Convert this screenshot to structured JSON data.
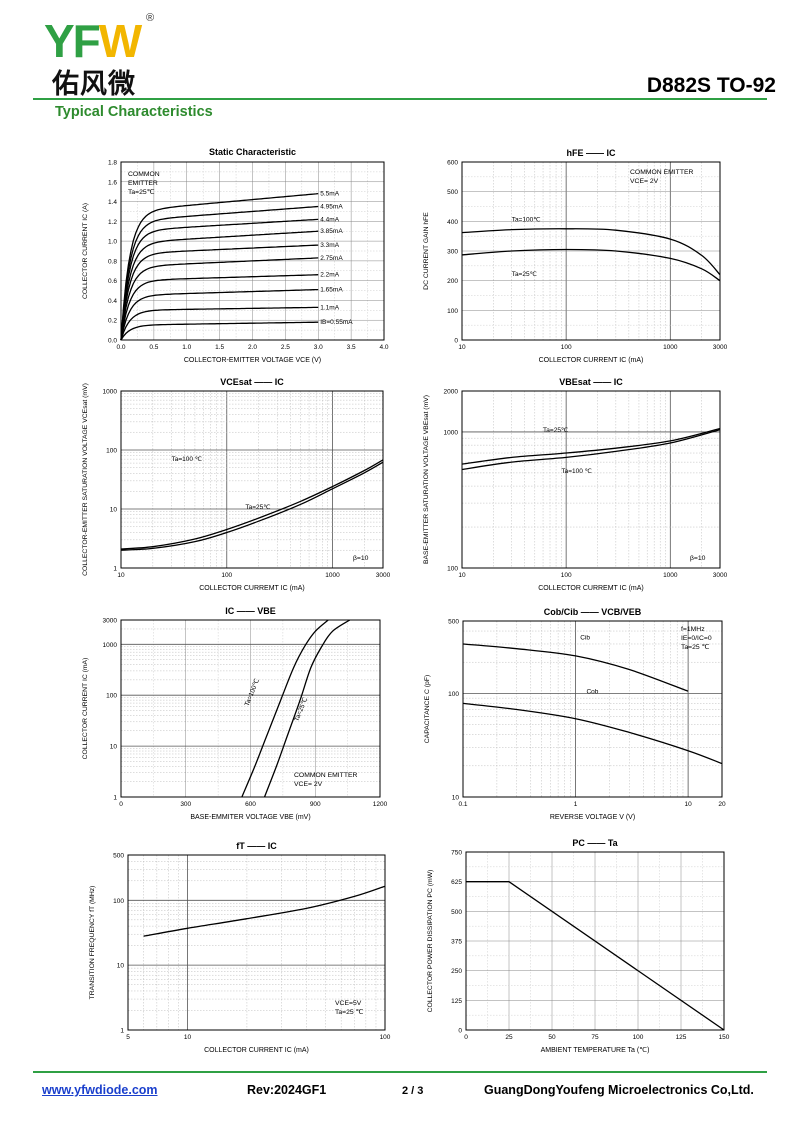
{
  "header": {
    "brand": "YFW",
    "brand_cn": "佑风微",
    "registered": "®",
    "model": "D882S TO-92",
    "section_title": "Typical Characteristics"
  },
  "footer": {
    "website": "www.yfwdiode.com",
    "revision": "Rev:2024GF1",
    "page": "2 / 3",
    "company": "GuangDongYoufeng Microelectronics Co,Ltd."
  },
  "chart_data": [
    {
      "id": "static",
      "type": "line",
      "title": "Static Characteristic",
      "xlabel": "COLLECTOR-EMITTER VOLTAGE  VCE (V)",
      "ylabel": "COLLECTOR CURRENT  IC (A)",
      "xlim": [
        0,
        4.0
      ],
      "ylim": [
        0,
        1.8
      ],
      "xscale": "linear",
      "yscale": "linear",
      "xticks": [
        "0.0",
        "0.5",
        "1.0",
        "1.5",
        "2.0",
        "2.5",
        "3.0",
        "3.5",
        "4.0"
      ],
      "yticks": [
        "0.0",
        "0.2",
        "0.4",
        "0.6",
        "0.8",
        "1.0",
        "1.2",
        "1.4",
        "1.6",
        "1.8"
      ],
      "annotation": [
        "COMMON",
        "EMITTER",
        "Ta=25℃"
      ],
      "series": [
        {
          "name": "5.5mA",
          "sat": 1.3,
          "slope": 0.06
        },
        {
          "name": "4.95mA",
          "sat": 1.2,
          "slope": 0.05
        },
        {
          "name": "4.4mA",
          "sat": 1.1,
          "slope": 0.04
        },
        {
          "name": "3.85mA",
          "sat": 0.98,
          "slope": 0.04
        },
        {
          "name": "3.3mA",
          "sat": 0.87,
          "slope": 0.03
        },
        {
          "name": "2.75mA",
          "sat": 0.74,
          "slope": 0.03
        },
        {
          "name": "2.2mA",
          "sat": 0.6,
          "slope": 0.02
        },
        {
          "name": "1.65mA",
          "sat": 0.45,
          "slope": 0.02
        },
        {
          "name": "1.1mA",
          "sat": 0.3,
          "slope": 0.01
        },
        {
          "name": "IB=0.55mA",
          "sat": 0.15,
          "slope": 0.01
        }
      ]
    },
    {
      "id": "hfe",
      "type": "line",
      "title_main": "hFE",
      "title_sep": "——",
      "title_right": "IC",
      "xlabel": "COLLECTOR CURRENT  IC (mA)",
      "ylabel": "DC CURRENT GAIN  hFE",
      "xlim": [
        10,
        3000
      ],
      "ylim": [
        0,
        600
      ],
      "xscale": "log",
      "yscale": "linear",
      "xticks": [
        "10",
        "100",
        "1000",
        "3000"
      ],
      "yticks": [
        "0",
        "100",
        "200",
        "300",
        "400",
        "500",
        "600"
      ],
      "annotation": [
        "COMMON EMITTER",
        "VCE= 2V"
      ],
      "series": [
        {
          "name": "Ta=100℃",
          "x": [
            10,
            30,
            100,
            300,
            1000,
            2000,
            3000
          ],
          "y": [
            362,
            372,
            375,
            370,
            340,
            285,
            220
          ]
        },
        {
          "name": "Ta=25℃",
          "x": [
            10,
            30,
            100,
            300,
            1000,
            2000,
            3000
          ],
          "y": [
            287,
            300,
            305,
            300,
            275,
            240,
            200
          ]
        }
      ]
    },
    {
      "id": "vcesat",
      "type": "line",
      "title_main": "VCEsat",
      "title_sep": "——",
      "title_right": "IC",
      "xlabel": "COLLECTOR CURREMT  IC (mA)",
      "ylabel": "COLLECTOR-EMITTER SATURATION VOLTAGE  VCEsat (mV)",
      "xlim": [
        10,
        3000
      ],
      "ylim": [
        1,
        1000
      ],
      "xscale": "log",
      "yscale": "log",
      "xticks": [
        "10",
        "100",
        "1000",
        "3000"
      ],
      "yticks": [
        "1",
        "10",
        "100",
        "1000"
      ],
      "annotation": [
        "β=10"
      ],
      "series": [
        {
          "name": "Ta=100 ℃",
          "x": [
            10,
            20,
            50,
            100,
            200,
            500,
            1000,
            2000,
            3000
          ],
          "y": [
            2.1,
            2.3,
            3.1,
            4.5,
            7.0,
            13.5,
            24,
            45,
            68
          ]
        },
        {
          "name": "Ta=25℃",
          "x": [
            10,
            20,
            50,
            100,
            200,
            500,
            1000,
            2000,
            3000
          ],
          "y": [
            2.0,
            2.15,
            2.8,
            4.0,
            6.2,
            12,
            22,
            41,
            62
          ]
        }
      ]
    },
    {
      "id": "vbesat",
      "type": "line",
      "title_main": "VBEsat",
      "title_sep": "——",
      "title_right": "IC",
      "xlabel": "COLLECTOR CURREMT  IC (mA)",
      "ylabel": "BASE-EMITTER SATURATION VOLTAGE  VBEsat (mV)",
      "xlim": [
        10,
        3000
      ],
      "ylim": [
        100,
        2000
      ],
      "xscale": "log",
      "yscale": "log",
      "xticks": [
        "10",
        "100",
        "1000",
        "3000"
      ],
      "yticks": [
        "100",
        "1000",
        "2000"
      ],
      "annotation": [
        "β=10"
      ],
      "series": [
        {
          "name": "Ta=25℃",
          "x": [
            10,
            30,
            100,
            300,
            1000,
            3000
          ],
          "y": [
            580,
            650,
            700,
            760,
            860,
            1060
          ]
        },
        {
          "name": "Ta=100 ℃",
          "x": [
            10,
            30,
            100,
            300,
            1000,
            3000
          ],
          "y": [
            530,
            600,
            650,
            720,
            830,
            1040
          ]
        }
      ]
    },
    {
      "id": "ic_vbe",
      "type": "line",
      "title_main": "IC",
      "title_sep": "——",
      "title_right": "VBE",
      "xlabel": "BASE-EMMITER VOLTAGE  VBE (mV)",
      "ylabel": "COLLECTOR CURRENT  IC (mA)",
      "xlim": [
        0,
        1200
      ],
      "ylim": [
        1,
        3000
      ],
      "xscale": "linear",
      "yscale": "log",
      "xticks": [
        "0",
        "300",
        "600",
        "900",
        "1200"
      ],
      "yticks": [
        "1",
        "10",
        "100",
        "1000",
        "3000"
      ],
      "annotation": [
        "COMMON EMITTER",
        "VCE= 2V"
      ],
      "series": [
        {
          "name": "Ta=100℃",
          "x": [
            560,
            620,
            680,
            740,
            800,
            850,
            900,
            960
          ],
          "y": [
            1,
            4,
            18,
            80,
            350,
            900,
            1800,
            3000
          ]
        },
        {
          "name": "Ta=25℃",
          "x": [
            665,
            720,
            775,
            830,
            880,
            930,
            980,
            1060
          ],
          "y": [
            1,
            4,
            18,
            80,
            350,
            900,
            1800,
            3000
          ]
        }
      ]
    },
    {
      "id": "cob",
      "type": "line",
      "title_main": "Cob/Cib",
      "title_sep": "——",
      "title_right": "VCB/VEB",
      "xlabel": "REVERSE  VOLTAGE  V (V)",
      "ylabel": "CAPACITANCE  C (pF)",
      "xlim": [
        0.1,
        20
      ],
      "ylim": [
        10,
        500
      ],
      "xscale": "log",
      "yscale": "log",
      "xticks": [
        "0.1",
        "1",
        "10",
        "20"
      ],
      "yticks": [
        "10",
        "100",
        "500"
      ],
      "annotation": [
        "f=1MHz",
        "IE=0/IC=0",
        "Ta=25 ℃"
      ],
      "series": [
        {
          "name": "Cib",
          "x": [
            0.1,
            0.3,
            1,
            3,
            10
          ],
          "y": [
            300,
            270,
            230,
            170,
            105
          ]
        },
        {
          "name": "Cob",
          "x": [
            0.1,
            0.3,
            1,
            3,
            10,
            20
          ],
          "y": [
            80,
            70,
            57,
            42,
            28,
            21
          ]
        }
      ]
    },
    {
      "id": "ft",
      "type": "line",
      "title_main": "fT",
      "title_sep": "——",
      "title_right": "IC",
      "xlabel": "COLLECTOR CURRENT  IC (mA)",
      "ylabel": "TRANSITION FREQUENCY  fT (MHz)",
      "xlim": [
        5,
        100
      ],
      "ylim": [
        1,
        500
      ],
      "xscale": "log",
      "yscale": "log",
      "xticks": [
        "5",
        "10",
        "100"
      ],
      "yticks": [
        "1",
        "10",
        "100",
        "500"
      ],
      "annotation": [
        "VCE=5V",
        "Ta=25 ℃"
      ],
      "series": [
        {
          "name": "fT",
          "x": [
            6,
            10,
            20,
            40,
            70,
            100
          ],
          "y": [
            28,
            37,
            52,
            75,
            115,
            165
          ]
        }
      ]
    },
    {
      "id": "pc",
      "type": "line",
      "title_main": "PC",
      "title_sep": "——",
      "title_right": "Ta",
      "xlabel": "AMBIENT TEMPERATURE  Ta (℃)",
      "ylabel": "COLLECTOR POWER DISSIPATION  PC (mW)",
      "xlim": [
        0,
        150
      ],
      "ylim": [
        0,
        750
      ],
      "xscale": "linear",
      "yscale": "linear",
      "xticks": [
        "0",
        "25",
        "50",
        "75",
        "100",
        "125",
        "150"
      ],
      "yticks": [
        "0",
        "125",
        "250",
        "375",
        "500",
        "625",
        "750"
      ],
      "series": [
        {
          "name": "PC",
          "x": [
            0,
            25,
            150
          ],
          "y": [
            625,
            625,
            0
          ]
        }
      ]
    }
  ]
}
